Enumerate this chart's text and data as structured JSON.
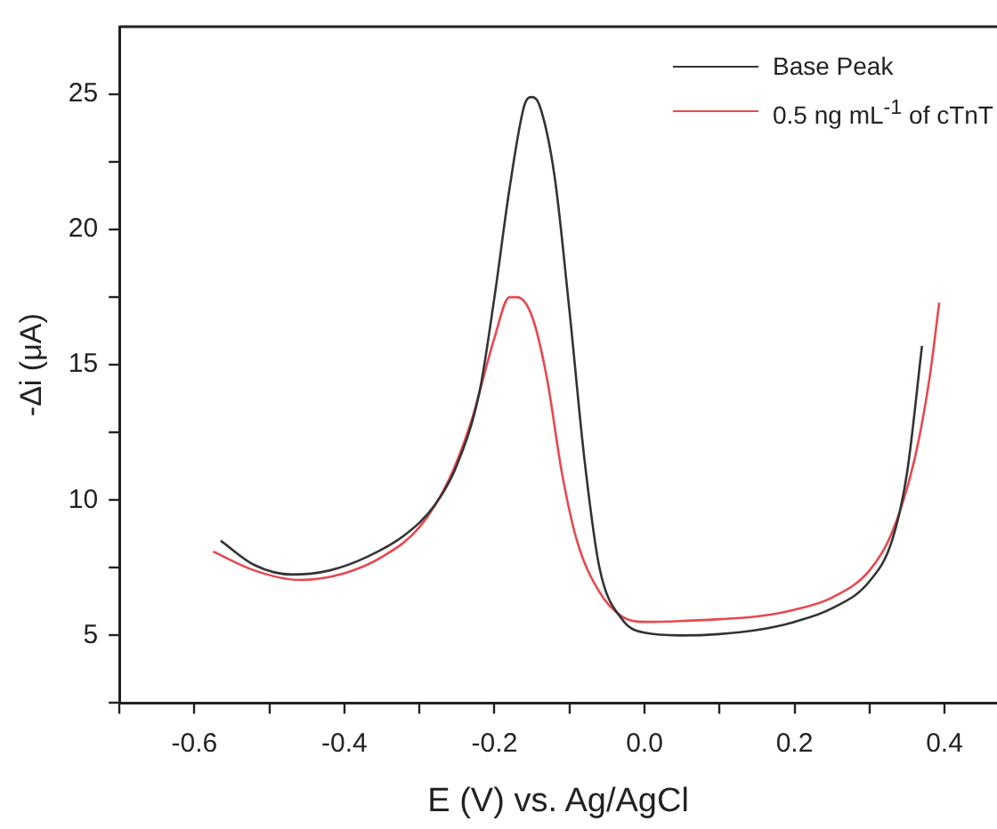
{
  "chart_data": {
    "type": "line",
    "xlabel": "E (V) vs. Ag/AgCl",
    "ylabel": "-Δi (μA)",
    "xlim": [
      -0.7,
      0.47
    ],
    "ylim": [
      2.5,
      27.5
    ],
    "xticks": [
      {
        "value": -0.7,
        "label": null
      },
      -0.6,
      {
        "value": -0.5,
        "label": null
      },
      -0.4,
      {
        "value": -0.3,
        "label": null
      },
      -0.2,
      {
        "value": -0.1,
        "label": null
      },
      {
        "value": 0,
        "label": "0.0"
      },
      {
        "value": 0.1,
        "label": null
      },
      0.2,
      {
        "value": 0.3,
        "label": null
      },
      0.4
    ],
    "yticks": [
      {
        "value": 2.5,
        "label": null
      },
      5,
      {
        "value": 7.5,
        "label": null
      },
      10,
      {
        "value": 12.5,
        "label": null
      },
      15,
      {
        "value": 17.5,
        "label": null
      },
      20,
      {
        "value": 22.5,
        "label": null
      },
      25
    ],
    "grid": false,
    "legend": "top right",
    "marker": "none",
    "line_style": "solid",
    "series": [
      {
        "name": "Base Peak",
        "color": "#333333",
        "x": [
          -0.565,
          -0.52,
          -0.47,
          -0.42,
          -0.37,
          -0.32,
          -0.28,
          -0.25,
          -0.22,
          -0.2,
          -0.18,
          -0.16,
          -0.15,
          -0.14,
          -0.12,
          -0.1,
          -0.08,
          -0.06,
          -0.03,
          0.0,
          0.05,
          0.1,
          0.15,
          0.2,
          0.25,
          0.3,
          0.33,
          0.35,
          0.37
        ],
        "values": [
          8.5,
          7.6,
          7.25,
          7.4,
          7.9,
          8.7,
          9.8,
          11.3,
          14,
          17.5,
          21.5,
          24.6,
          24.9,
          24.6,
          22,
          17,
          11.5,
          7.5,
          5.6,
          5.1,
          5.0,
          5.05,
          5.2,
          5.5,
          6.0,
          7.0,
          8.5,
          11,
          15.7
        ]
      },
      {
        "name": "0.5 ng mL$^{-1}$ of cTnT",
        "color": "#e8474f",
        "x": [
          -0.575,
          -0.52,
          -0.46,
          -0.4,
          -0.35,
          -0.3,
          -0.26,
          -0.23,
          -0.2,
          -0.18,
          -0.17,
          -0.15,
          -0.13,
          -0.11,
          -0.09,
          -0.06,
          -0.03,
          0.0,
          0.1,
          0.15,
          0.2,
          0.25,
          0.3,
          0.33,
          0.36,
          0.38,
          0.393
        ],
        "values": [
          8.1,
          7.4,
          7.05,
          7.3,
          7.9,
          9.0,
          10.8,
          13,
          16,
          17.5,
          17.5,
          16.8,
          14.5,
          11,
          8.5,
          6.6,
          5.7,
          5.5,
          5.6,
          5.7,
          5.95,
          6.4,
          7.4,
          8.8,
          11.5,
          14.5,
          17.3
        ]
      }
    ]
  }
}
